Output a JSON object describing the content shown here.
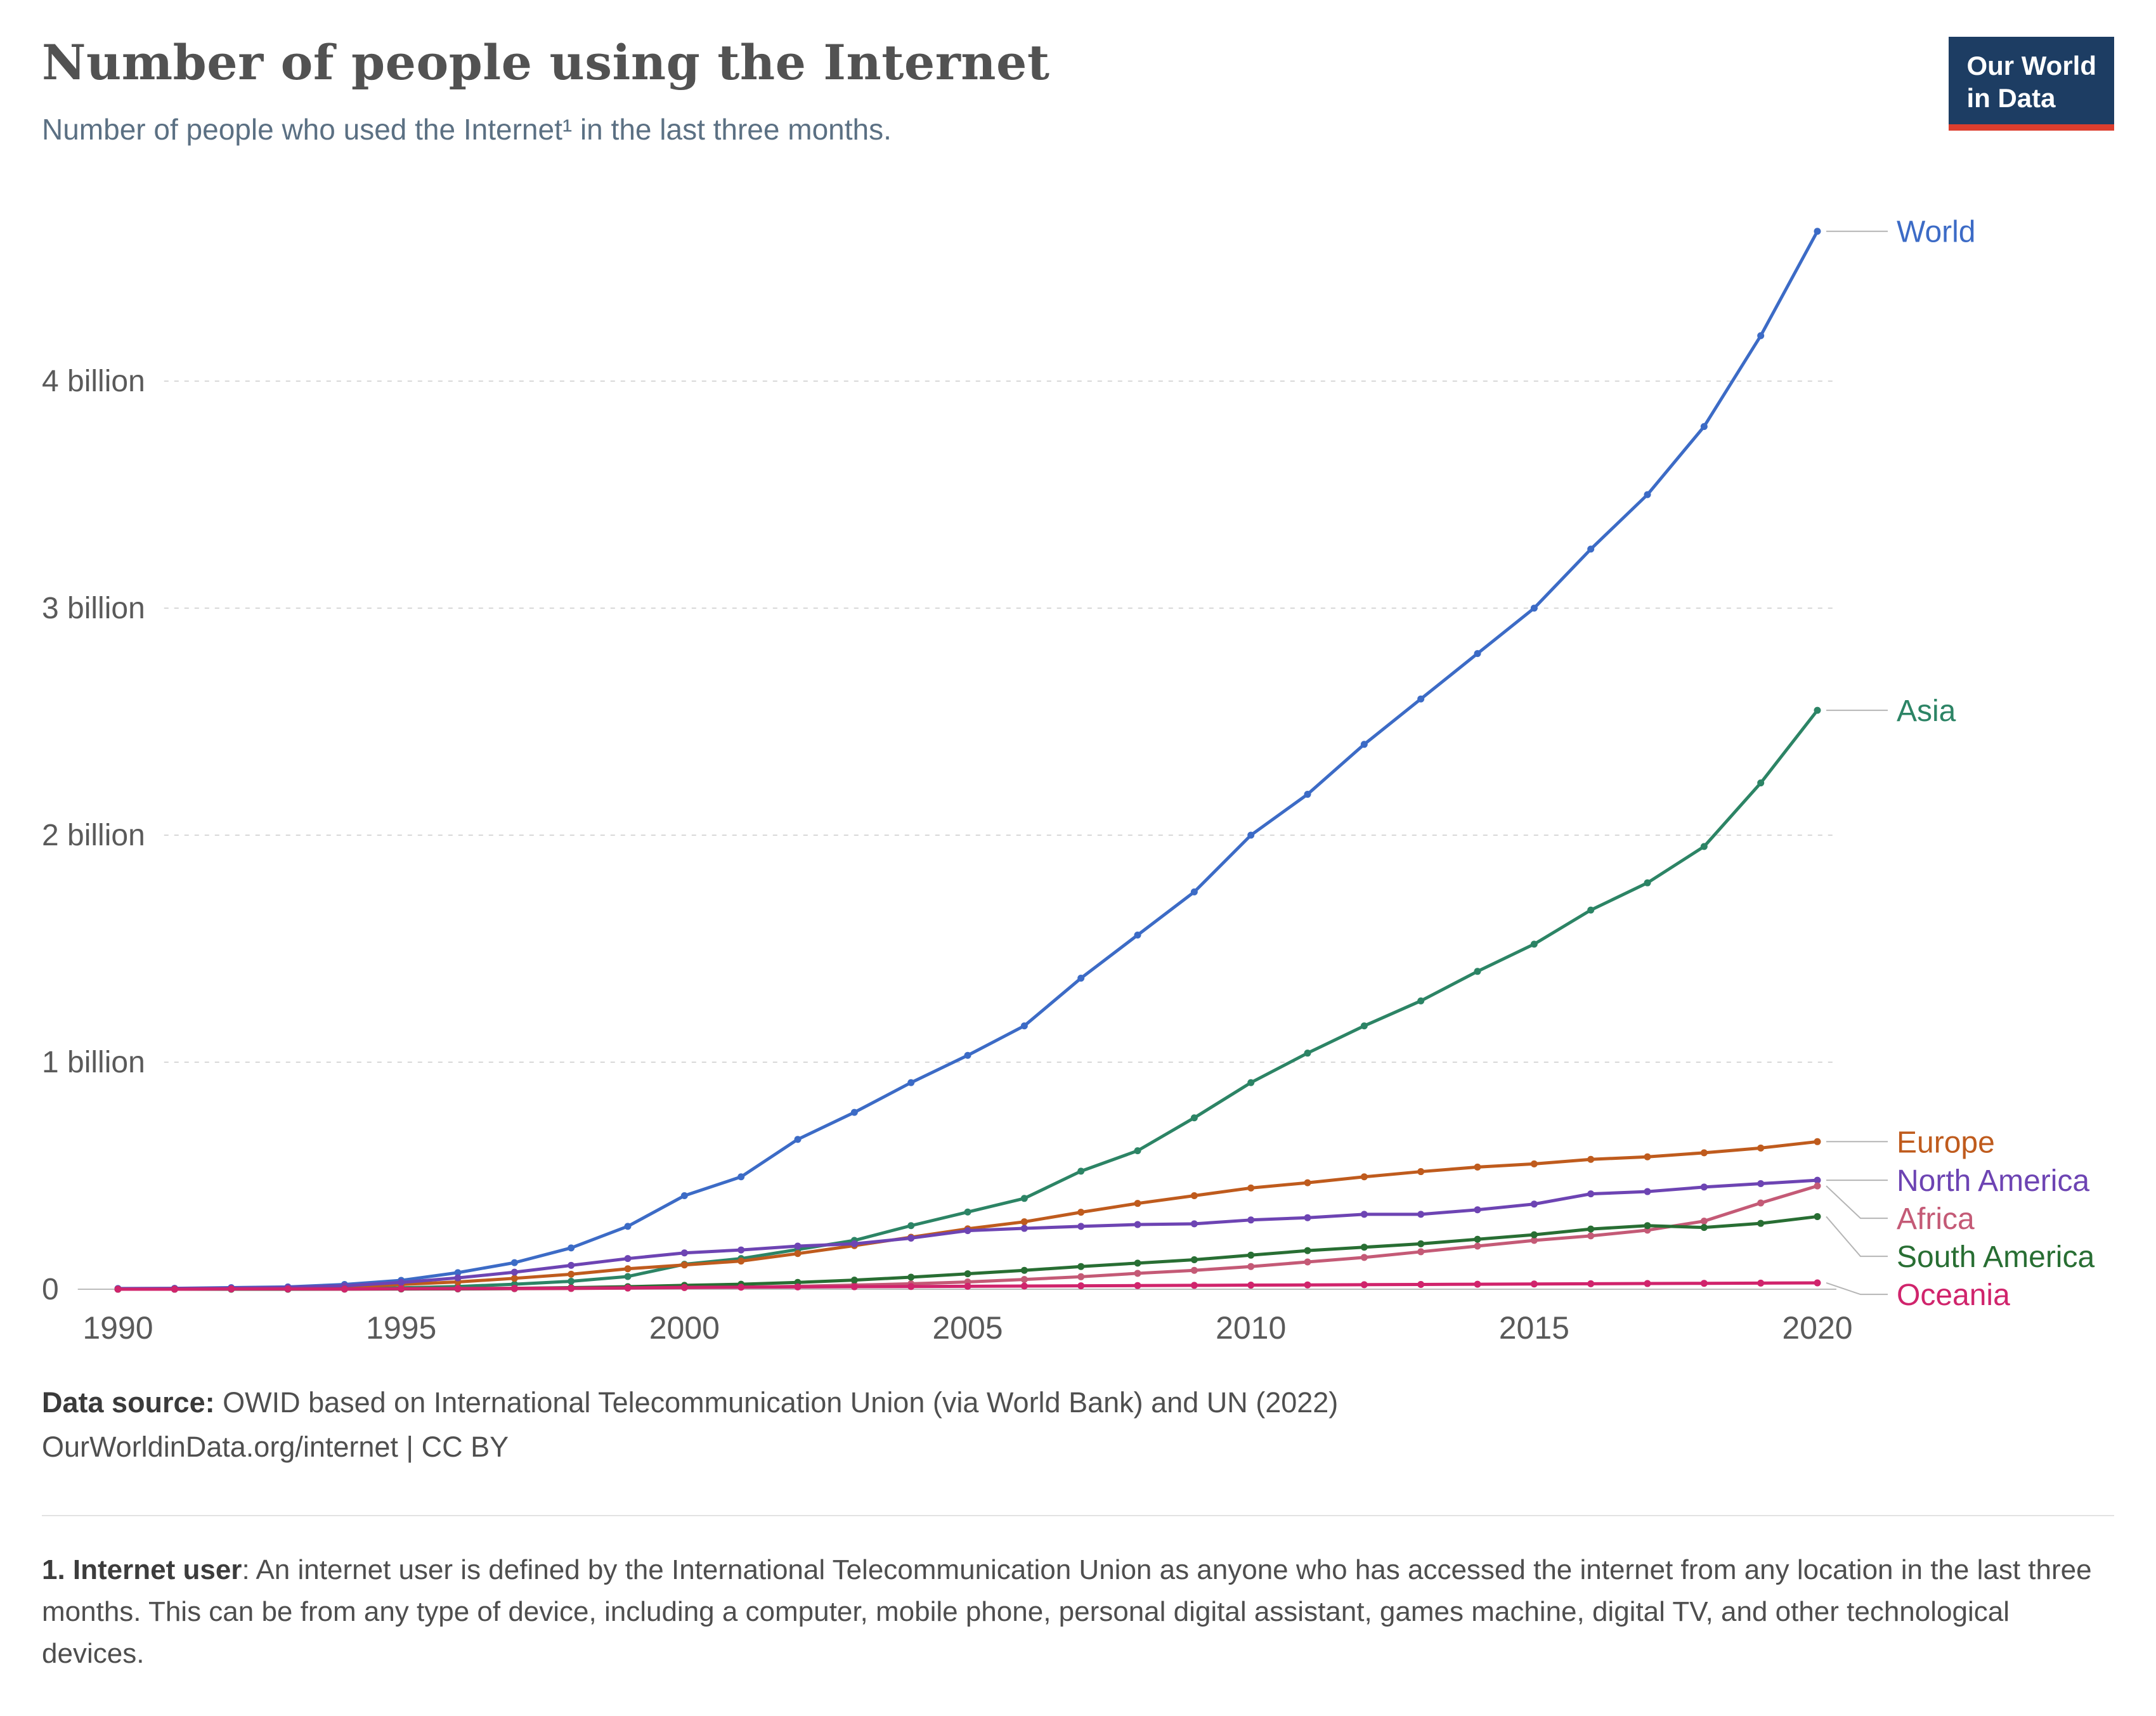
{
  "header": {
    "title": "Number of people using the Internet",
    "subtitle": "Number of people who used the Internet¹ in the last three months.",
    "logo_line1": "Our World",
    "logo_line2": "in Data"
  },
  "colors": {
    "logo_background": "#1d3d63",
    "logo_accent": "#dc3e2e",
    "title_text": "#525252",
    "subtitle_text": "#5b7083",
    "gridline": "#d8d8d8",
    "axis_zero_line": "#bcbcbc",
    "tick_label": "#5a5a5a"
  },
  "chart_data": {
    "type": "line",
    "title": "Number of people using the Internet",
    "xlabel": "",
    "ylabel": "",
    "unit": "billion people",
    "grid": "horizontal-dashed",
    "legend_position": "right",
    "xlim": [
      1990,
      2020
    ],
    "ylim": [
      0,
      4.8
    ],
    "x_ticks": [
      1990,
      1995,
      2000,
      2005,
      2010,
      2015,
      2020
    ],
    "y_ticks": [
      {
        "value": 0,
        "label": "0"
      },
      {
        "value": 1,
        "label": "1 billion"
      },
      {
        "value": 2,
        "label": "2 billion"
      },
      {
        "value": 3,
        "label": "3 billion"
      },
      {
        "value": 4,
        "label": "4 billion"
      }
    ],
    "x": [
      1990,
      1991,
      1992,
      1993,
      1994,
      1995,
      1996,
      1997,
      1998,
      1999,
      2000,
      2001,
      2002,
      2003,
      2004,
      2005,
      2006,
      2007,
      2008,
      2009,
      2010,
      2011,
      2012,
      2013,
      2014,
      2015,
      2016,
      2017,
      2018,
      2019,
      2020
    ],
    "series": [
      {
        "id": "world",
        "name": "World",
        "color": "#3c6bc6",
        "values": [
          0.003,
          0.004,
          0.007,
          0.01,
          0.021,
          0.039,
          0.073,
          0.117,
          0.182,
          0.277,
          0.412,
          0.495,
          0.66,
          0.779,
          0.91,
          1.03,
          1.16,
          1.37,
          1.56,
          1.75,
          2.0,
          2.18,
          2.4,
          2.6,
          2.8,
          3.0,
          3.26,
          3.5,
          3.8,
          4.2,
          4.66
        ]
      },
      {
        "id": "asia",
        "name": "Asia",
        "color": "#2c8465",
        "values": [
          0.0,
          0.0,
          0.001,
          0.001,
          0.002,
          0.006,
          0.012,
          0.022,
          0.035,
          0.056,
          0.11,
          0.135,
          0.175,
          0.215,
          0.28,
          0.34,
          0.4,
          0.52,
          0.61,
          0.755,
          0.91,
          1.04,
          1.16,
          1.27,
          1.4,
          1.52,
          1.67,
          1.79,
          1.95,
          2.23,
          2.55
        ]
      },
      {
        "id": "europe",
        "name": "Europe",
        "color": "#bf5b1d",
        "values": [
          0.001,
          0.002,
          0.003,
          0.005,
          0.009,
          0.021,
          0.032,
          0.048,
          0.066,
          0.09,
          0.107,
          0.124,
          0.157,
          0.192,
          0.229,
          0.266,
          0.297,
          0.339,
          0.378,
          0.412,
          0.446,
          0.469,
          0.495,
          0.518,
          0.538,
          0.552,
          0.572,
          0.583,
          0.601,
          0.622,
          0.65
        ]
      },
      {
        "id": "north-america",
        "name": "North America",
        "color": "#6d44b3",
        "values": [
          0.002,
          0.003,
          0.005,
          0.008,
          0.015,
          0.03,
          0.05,
          0.075,
          0.105,
          0.135,
          0.16,
          0.173,
          0.19,
          0.2,
          0.225,
          0.258,
          0.268,
          0.277,
          0.285,
          0.288,
          0.305,
          0.315,
          0.33,
          0.33,
          0.35,
          0.375,
          0.42,
          0.43,
          0.45,
          0.465,
          0.48
        ]
      },
      {
        "id": "africa",
        "name": "Africa",
        "color": "#c45a76",
        "values": [
          0.0,
          0.0,
          0.0,
          0.0,
          0.0,
          0.001,
          0.001,
          0.002,
          0.003,
          0.005,
          0.007,
          0.009,
          0.013,
          0.018,
          0.024,
          0.032,
          0.043,
          0.055,
          0.07,
          0.083,
          0.1,
          0.12,
          0.14,
          0.165,
          0.19,
          0.215,
          0.235,
          0.26,
          0.3,
          0.38,
          0.455
        ]
      },
      {
        "id": "south-america",
        "name": "South America",
        "color": "#286e33",
        "values": [
          0.0,
          0.0,
          0.0,
          0.0,
          0.001,
          0.001,
          0.002,
          0.004,
          0.007,
          0.011,
          0.017,
          0.022,
          0.03,
          0.04,
          0.053,
          0.068,
          0.083,
          0.1,
          0.115,
          0.13,
          0.15,
          0.17,
          0.185,
          0.2,
          0.22,
          0.24,
          0.265,
          0.28,
          0.272,
          0.29,
          0.32
        ]
      },
      {
        "id": "oceania",
        "name": "Oceania",
        "color": "#d0246c",
        "values": [
          0.0,
          0.0,
          0.001,
          0.001,
          0.001,
          0.002,
          0.003,
          0.004,
          0.005,
          0.006,
          0.008,
          0.009,
          0.01,
          0.011,
          0.012,
          0.013,
          0.014,
          0.015,
          0.016,
          0.017,
          0.018,
          0.019,
          0.02,
          0.021,
          0.022,
          0.023,
          0.024,
          0.025,
          0.026,
          0.027,
          0.028
        ]
      }
    ]
  },
  "footer": {
    "source_label": "Data source:",
    "source_rest": " OWID based on International Telecommunication Union (via World Bank) and UN (2022)",
    "source_line2": "OurWorldinData.org/internet | CC BY",
    "note_label": "1. Internet user",
    "note_rest": ": An internet user is defined by the International Telecommunication Union as anyone who has accessed the internet from any location in the last three months. This can be from any type of device, including a computer, mobile phone, personal digital assistant, games machine, digital TV, and other technological devices."
  }
}
